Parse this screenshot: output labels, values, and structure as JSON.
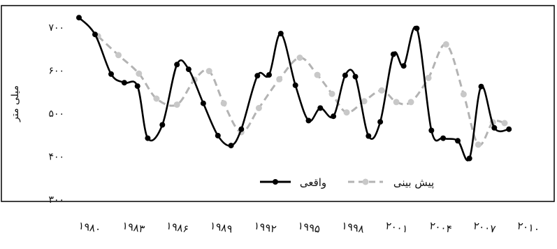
{
  "chart_data": {
    "type": "line",
    "ylabel": "میلی متر",
    "ylim": [
      300,
      750
    ],
    "yticks": [
      300,
      400,
      500,
      600,
      700
    ],
    "ytick_labels": [
      "۳۰۰",
      "۴۰۰",
      "۵۰۰",
      "۶۰۰",
      "۷۰۰"
    ],
    "xlim": [
      1979.5,
      2010.8
    ],
    "xticks": [
      1980,
      1983,
      1986,
      1989,
      1992,
      1995,
      1998,
      2001,
      2004,
      2007,
      2010
    ],
    "xtick_labels": [
      "۱۹۸۰",
      "۱۹۸۳",
      "۱۹۸۶",
      "۱۹۸۹",
      "۱۹۹۲",
      "۱۹۹۵",
      "۱۹۹۸",
      "۲۰۰۱",
      "۲۰۰۴",
      "۲۰۰۷",
      "۲۰۱۰"
    ],
    "legend": {
      "position": "bottom-right",
      "entries": [
        "واقعی",
        "پیش بینی"
      ]
    },
    "series": [
      {
        "name": "واقعی",
        "color": "#000000",
        "style": "solid",
        "x": [
          1979.5,
          1980.6,
          1981.7,
          1982.6,
          1983.5,
          1984.2,
          1985.2,
          1986.2,
          1987,
          1988,
          1989,
          1989.9,
          1990.6,
          1991.7,
          1992.5,
          1993.3,
          1994.3,
          1995.2,
          1996,
          1996.9,
          1997.7,
          1998.4,
          1999.3,
          2000.1,
          2001,
          2001.7,
          2002.6,
          2003.6,
          2004.4,
          2005.4,
          2006.2,
          2007,
          2007.9,
          2008.9
        ],
        "values": [
          722,
          683,
          591,
          571,
          563,
          442,
          473,
          613,
          602,
          523,
          448,
          425,
          463,
          587,
          589,
          685,
          565,
          483,
          512,
          493,
          588,
          585,
          447,
          480,
          637,
          610,
          697,
          460,
          442,
          436,
          395,
          562,
          466,
          463
        ]
      },
      {
        "name": "پیش بینی",
        "color": "#b3b3b3",
        "style": "dashed",
        "x": [
          1980.8,
          1982.2,
          1983.6,
          1984.8,
          1986.2,
          1987.4,
          1988.4,
          1989.4,
          1990.6,
          1991.8,
          1993.2,
          1994.6,
          1995.8,
          1996.8,
          1997.8,
          1999,
          2000.2,
          2001.2,
          2002.2,
          2003.4,
          2004.6,
          2005.8,
          2006.8,
          2007.8,
          2008.6
        ],
        "values": [
          679,
          635,
          592,
          534,
          520,
          578,
          598,
          523,
          456,
          512,
          579,
          629,
          589,
          545,
          502,
          528,
          553,
          526,
          526,
          582,
          660,
          544,
          427,
          479,
          477
        ]
      }
    ]
  }
}
